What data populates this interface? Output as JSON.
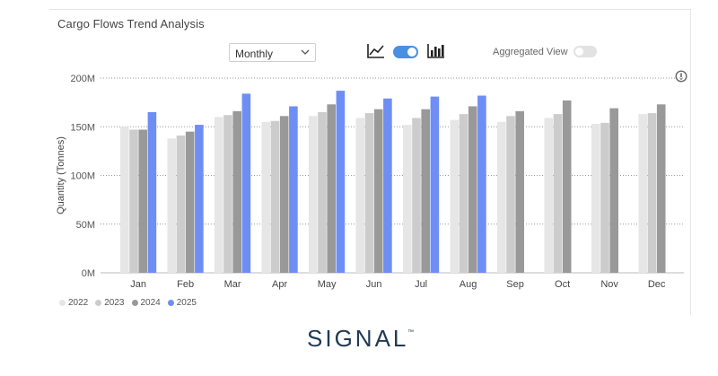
{
  "title": "Cargo Flows Trend Analysis",
  "controls": {
    "period_value": "Monthly",
    "chart_type_toggle_on": true,
    "aggregated_label": "Aggregated View",
    "aggregated_on": false
  },
  "brand": {
    "logo_text": "SIGNAL",
    "trademark": "™",
    "color": "#1f3a56"
  },
  "chart_data": {
    "type": "bar",
    "title": "Cargo Flows Trend Analysis",
    "xlabel": "",
    "ylabel": "Quantity (Tonnes)",
    "ylim": [
      0,
      200
    ],
    "yticks": [
      0,
      50,
      100,
      150,
      200
    ],
    "ytick_labels": [
      "0M",
      "50M",
      "100M",
      "150M",
      "200M"
    ],
    "unit": "M",
    "grid": true,
    "legend_position": "bottom-left",
    "categories": [
      "Jan",
      "Feb",
      "Mar",
      "Apr",
      "May",
      "Jun",
      "Jul",
      "Aug",
      "Sep",
      "Oct",
      "Nov",
      "Dec"
    ],
    "series": [
      {
        "name": "2022",
        "color": "#e6e6e6",
        "values": [
          150,
          138,
          160,
          155,
          161,
          159,
          152,
          157,
          155,
          159,
          153,
          163
        ]
      },
      {
        "name": "2023",
        "color": "#cccccc",
        "values": [
          147,
          141,
          162,
          156,
          165,
          164,
          159,
          163,
          161,
          163,
          154,
          164
        ]
      },
      {
        "name": "2024",
        "color": "#999999",
        "values": [
          147,
          145,
          166,
          161,
          173,
          168,
          168,
          171,
          166,
          177,
          169,
          173
        ]
      },
      {
        "name": "2025",
        "color": "#6f8ef5",
        "values": [
          165,
          152,
          184,
          171,
          187,
          179,
          181,
          182,
          null,
          null,
          null,
          null
        ]
      }
    ]
  }
}
